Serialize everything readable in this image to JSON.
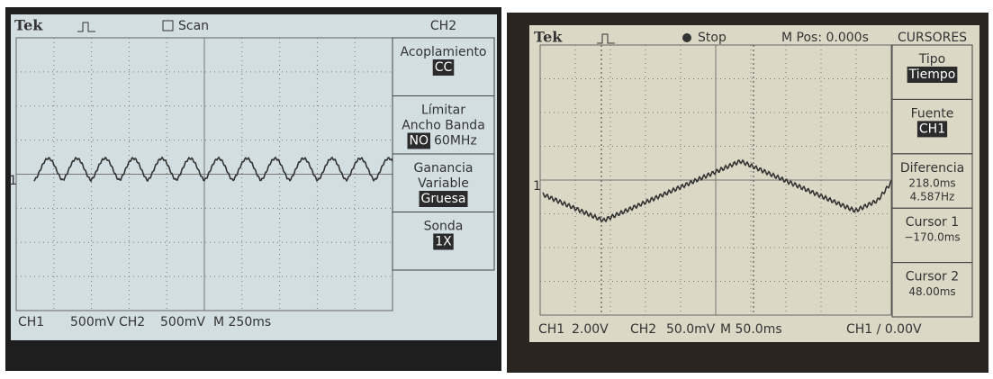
{
  "left_screen": {
    "header": {
      "brand": "Tek",
      "trigger_state": "Scan",
      "menu_title": "CH2"
    },
    "marker": "1",
    "menu": [
      {
        "label": [
          "Acoplamiento"
        ],
        "value": "CC"
      },
      {
        "label": [
          "Límitar",
          "Ancho Banda"
        ],
        "value": "NO",
        "extra": "60MHz"
      },
      {
        "label": [
          "Ganancia",
          "Variable"
        ],
        "value": "Gruesa"
      },
      {
        "label": [
          "Sonda"
        ],
        "value": "1X"
      }
    ],
    "footer": [
      "CH1",
      "500mV",
      "CH2",
      "500mV",
      "M 250ms"
    ]
  },
  "right_screen": {
    "header": {
      "brand": "Tek",
      "trigger_state": "Stop",
      "position": "M Pos: 0.000s",
      "menu_title": "CURSORES"
    },
    "marker": "1",
    "menu": [
      {
        "label": [
          "Tipo"
        ],
        "value": "Tiempo"
      },
      {
        "label": [
          "Fuente"
        ],
        "value": "CH1"
      },
      {
        "label": [
          "Diferencia"
        ],
        "lines": [
          "218.0ms",
          "4.587Hz"
        ]
      },
      {
        "label": [
          "Cursor 1"
        ],
        "lines": [
          "−170.0ms"
        ]
      },
      {
        "label": [
          "Cursor 2"
        ],
        "lines": [
          "48.00ms"
        ]
      }
    ],
    "footer": [
      "CH1",
      "2.00V",
      "CH2",
      "50.0mV",
      "M 50.0ms",
      "CH1 ∕ 0.00V"
    ]
  }
}
